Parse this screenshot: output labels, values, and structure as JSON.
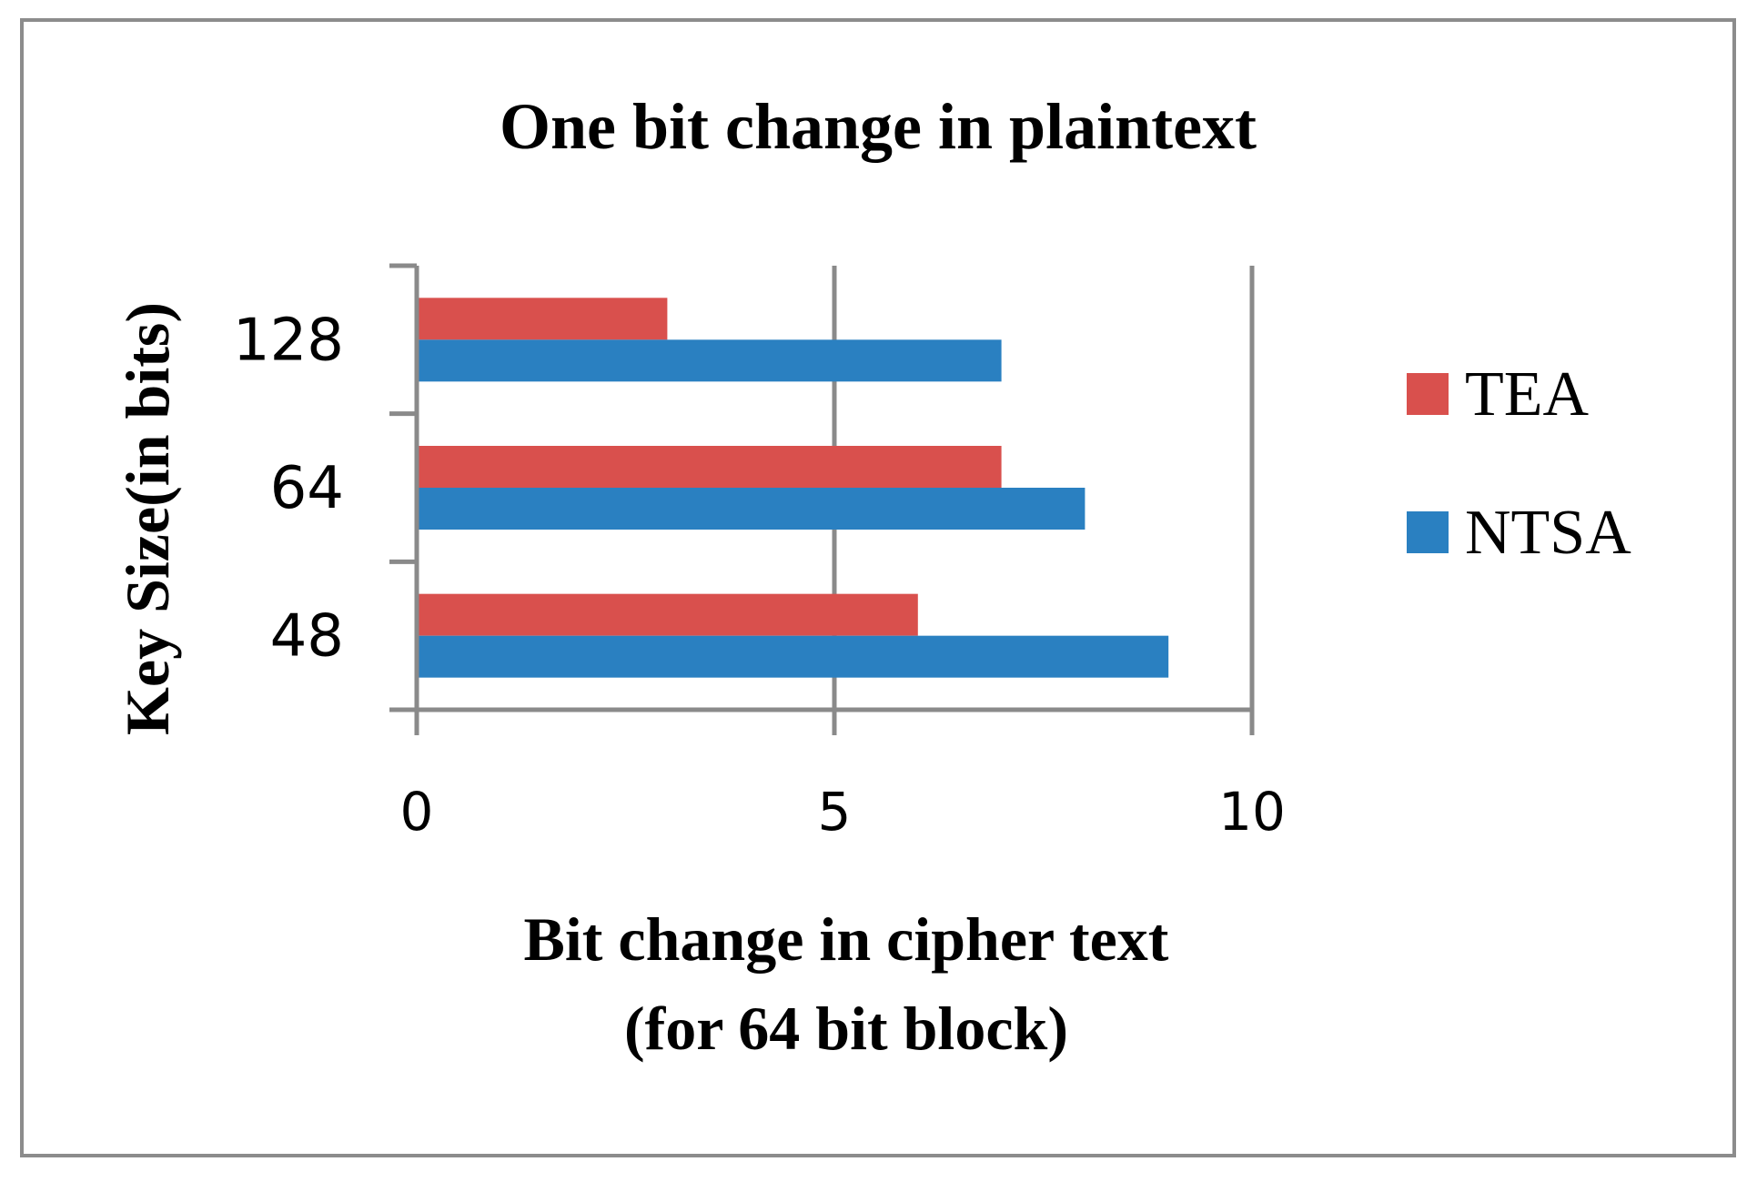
{
  "chart_data": {
    "type": "bar",
    "orientation": "horizontal",
    "title": "One bit change in plaintext",
    "xlabel_lines": [
      "Bit change in cipher text",
      "(for 64 bit block)"
    ],
    "ylabel": "Key Size(in bits)",
    "categories": [
      "128",
      "64",
      "48"
    ],
    "series": [
      {
        "name": "TEA",
        "color": "#d9504d",
        "values": [
          3,
          7,
          6
        ]
      },
      {
        "name": "NTSA",
        "color": "#2a80c1",
        "values": [
          7,
          8,
          9
        ]
      }
    ],
    "xlim": [
      0,
      10
    ],
    "xticks": [
      "0",
      "5",
      "10"
    ],
    "grid": true,
    "legend_position": "right"
  }
}
